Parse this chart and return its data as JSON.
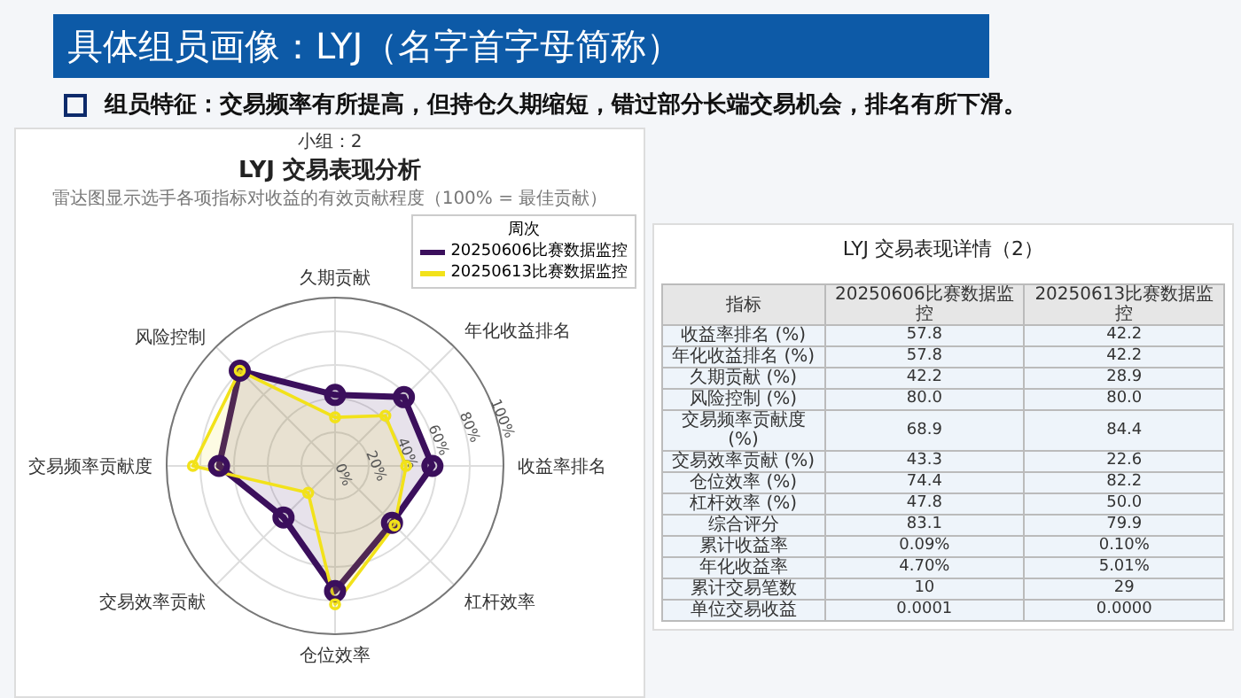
{
  "chart_data": [
    {
      "type": "radar",
      "title": "LYJ 交易表现分析",
      "subtitle": "雷达图显示选手各项指标对收益的有效贡献程度（100% = 最佳贡献）",
      "annotations": [
        "具体组员画像：LYJ（名字首字母简称）",
        "组员特征：交易频率有所提高，但持仓久期缩短，错过部分长端交易机会，排名有所下滑。",
        "小组：2"
      ],
      "categories": [
        "久期贡献",
        "年化收益排名",
        "收益率排名",
        "杠杆效率",
        "仓位效率",
        "交易效率贡献",
        "交易频率贡献度",
        "风险控制"
      ],
      "series": [
        {
          "name": "20250606比赛数据监控",
          "color": "#3b0f5c",
          "values": [
            42.2,
            57.8,
            57.8,
            47.8,
            74.4,
            43.3,
            68.9,
            80.0
          ]
        },
        {
          "name": "20250613比赛数据监控",
          "color": "#f2e21a",
          "values": [
            28.9,
            42.2,
            42.2,
            50.0,
            82.2,
            22.6,
            84.4,
            80.0
          ]
        }
      ],
      "ylim": [
        0,
        100
      ],
      "yticks": [
        {
          "value": 0,
          "label": "0%"
        },
        {
          "value": 20,
          "label": "20%"
        },
        {
          "value": 40,
          "label": "40%"
        },
        {
          "value": 60,
          "label": "60%"
        },
        {
          "value": 80,
          "label": "80%"
        },
        {
          "value": 100,
          "label": "100%"
        }
      ],
      "legend_title": "周次",
      "legend": "top right",
      "marker": "circle",
      "grid": true
    },
    {
      "type": "other",
      "title": "LYJ 交易表现详情（2）",
      "ylabel": "指标",
      "categories": [
        "20250606比赛数据监控",
        "20250613比赛数据监控"
      ],
      "y_categories": [
        "收益率排名 (%)",
        "年化收益排名 (%)",
        "久期贡献 (%)",
        "风险控制 (%)",
        "交易频率贡献度 (%)",
        "交易效率贡献 (%)",
        "仓位效率 (%)",
        "杠杆效率 (%)",
        "综合评分",
        "累计收益率",
        "年化收益率",
        "累计交易笔数",
        "单位交易收益"
      ],
      "cell_labels": [
        [
          "57.8",
          "42.2"
        ],
        [
          "57.8",
          "42.2"
        ],
        [
          "42.2",
          "28.9"
        ],
        [
          "80.0",
          "80.0"
        ],
        [
          "68.9",
          "84.4"
        ],
        [
          "43.3",
          "22.6"
        ],
        [
          "74.4",
          "82.2"
        ],
        [
          "47.8",
          "50.0"
        ],
        [
          "83.1",
          "79.9"
        ],
        [
          "0.09%",
          "0.10%"
        ],
        [
          "4.70%",
          "5.01%"
        ],
        [
          "10",
          "29"
        ],
        [
          "0.0001",
          "0.0000"
        ]
      ]
    }
  ]
}
